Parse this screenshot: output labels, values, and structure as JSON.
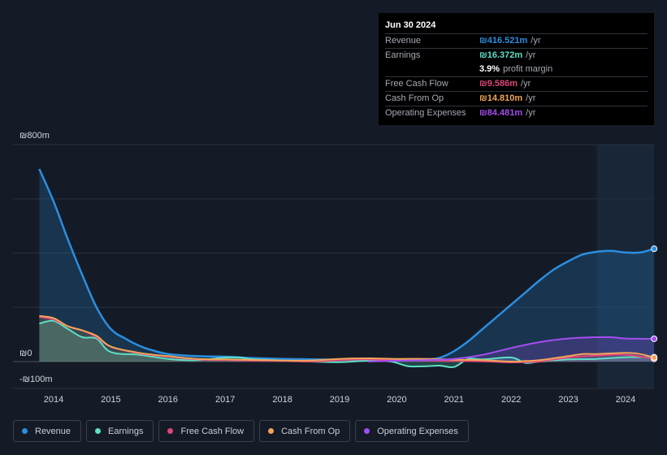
{
  "tooltip": {
    "date": "Jun 30 2024",
    "rows": [
      {
        "label": "Revenue",
        "value": "₪416.521m",
        "unit": "/yr",
        "color": "#2a8ee0"
      },
      {
        "label": "Earnings",
        "value": "₪16.372m",
        "unit": "/yr",
        "color": "#5ce0c6"
      },
      {
        "label": "",
        "value": "3.9%",
        "unit": "profit margin",
        "color": "#ffffff"
      },
      {
        "label": "Free Cash Flow",
        "value": "₪9.586m",
        "unit": "/yr",
        "color": "#e0457b"
      },
      {
        "label": "Cash From Op",
        "value": "₪14.810m",
        "unit": "/yr",
        "color": "#f0a55a"
      },
      {
        "label": "Operating Expenses",
        "value": "₪84.481m",
        "unit": "/yr",
        "color": "#a34ef0"
      }
    ]
  },
  "legend": [
    {
      "label": "Revenue",
      "color": "#2a8ee0"
    },
    {
      "label": "Earnings",
      "color": "#5ce0c6"
    },
    {
      "label": "Free Cash Flow",
      "color": "#e0457b"
    },
    {
      "label": "Cash From Op",
      "color": "#f0a55a"
    },
    {
      "label": "Operating Expenses",
      "color": "#a34ef0"
    }
  ],
  "chart_data": {
    "type": "line",
    "y_top_label": "₪800m",
    "y_zero_label": "₪0",
    "y_bottom_label": "-₪100m",
    "ylim": [
      -100,
      800
    ],
    "xlim": [
      2013.7,
      2024.5
    ],
    "x_ticks": [
      2014,
      2015,
      2016,
      2017,
      2018,
      2019,
      2020,
      2021,
      2022,
      2023,
      2024
    ],
    "x_tick_labels": [
      "2014",
      "2015",
      "2016",
      "2017",
      "2018",
      "2019",
      "2020",
      "2021",
      "2022",
      "2023",
      "2024"
    ],
    "gridlines_y": [
      800,
      600,
      400,
      200,
      0
    ],
    "highlight_from": 2023.5,
    "series": [
      {
        "name": "Revenue",
        "color": "#2a8ee0",
        "fill": true,
        "x": [
          2013.75,
          2014.0,
          2014.25,
          2014.5,
          2014.75,
          2015.0,
          2015.25,
          2015.5,
          2015.75,
          2016.0,
          2016.5,
          2017.0,
          2017.5,
          2018.0,
          2018.5,
          2019.0,
          2019.5,
          2020.0,
          2020.5,
          2020.75,
          2021.0,
          2021.25,
          2021.5,
          2021.75,
          2022.0,
          2022.25,
          2022.5,
          2022.75,
          2023.0,
          2023.25,
          2023.5,
          2023.75,
          2024.0,
          2024.25,
          2024.5
        ],
        "y": [
          710,
          590,
          450,
          320,
          200,
          120,
          85,
          58,
          40,
          28,
          20,
          18,
          13,
          10,
          8,
          7,
          7,
          8,
          8,
          14,
          38,
          75,
          120,
          165,
          210,
          255,
          300,
          340,
          370,
          395,
          405,
          408,
          402,
          402,
          416
        ]
      },
      {
        "name": "Earnings",
        "color": "#5ce0c6",
        "fill": true,
        "x": [
          2013.75,
          2014.0,
          2014.25,
          2014.5,
          2014.75,
          2015.0,
          2015.5,
          2016.0,
          2016.5,
          2017.0,
          2017.25,
          2017.5,
          2018.0,
          2018.5,
          2019.0,
          2019.5,
          2019.9,
          2020.2,
          2020.5,
          2020.75,
          2021.0,
          2021.25,
          2021.5,
          2022.0,
          2022.25,
          2022.5,
          2023.0,
          2023.5,
          2024.0,
          2024.5
        ],
        "y": [
          140,
          150,
          120,
          90,
          85,
          35,
          25,
          10,
          5,
          15,
          15,
          8,
          4,
          0,
          -2,
          3,
          0,
          -17,
          -17,
          -15,
          -20,
          10,
          8,
          15,
          -5,
          0,
          8,
          10,
          16,
          16
        ]
      },
      {
        "name": "Free Cash Flow",
        "color": "#e0457b",
        "fill": false,
        "x": [
          2013.75,
          2014.0,
          2014.25,
          2014.5,
          2014.75,
          2015.0,
          2015.5,
          2016.0,
          2016.5,
          2017.0,
          2017.5,
          2018.0,
          2018.5,
          2019.0,
          2019.5,
          2020.0,
          2020.5,
          2021.0,
          2021.5,
          2022.0,
          2022.25,
          2022.5,
          2023.0,
          2023.5,
          2024.0,
          2024.5
        ],
        "y": [
          165,
          155,
          130,
          115,
          90,
          55,
          30,
          18,
          8,
          5,
          3,
          2,
          0,
          5,
          8,
          5,
          4,
          2,
          1,
          -3,
          -2,
          0,
          15,
          22,
          25,
          10
        ]
      },
      {
        "name": "Cash From Op",
        "color": "#f0a55a",
        "fill": true,
        "x": [
          2013.75,
          2014.0,
          2014.25,
          2014.5,
          2014.75,
          2015.0,
          2015.5,
          2016.0,
          2016.5,
          2017.0,
          2017.5,
          2018.0,
          2018.5,
          2019.0,
          2019.5,
          2020.0,
          2020.5,
          2021.0,
          2021.5,
          2022.0,
          2022.25,
          2022.5,
          2023.0,
          2023.25,
          2023.5,
          2024.0,
          2024.25,
          2024.5
        ],
        "y": [
          168,
          160,
          130,
          115,
          95,
          55,
          32,
          20,
          10,
          8,
          6,
          4,
          4,
          10,
          12,
          10,
          10,
          7,
          5,
          0,
          2,
          5,
          20,
          28,
          28,
          32,
          28,
          15
        ]
      },
      {
        "name": "Operating Expenses",
        "color": "#a34ef0",
        "fill": true,
        "x": [
          2019.5,
          2020.0,
          2020.5,
          2021.0,
          2021.5,
          2022.0,
          2022.5,
          2023.0,
          2023.5,
          2023.75,
          2024.0,
          2024.5
        ],
        "y": [
          0,
          3,
          5,
          10,
          25,
          50,
          72,
          85,
          90,
          90,
          85,
          84
        ]
      }
    ]
  }
}
